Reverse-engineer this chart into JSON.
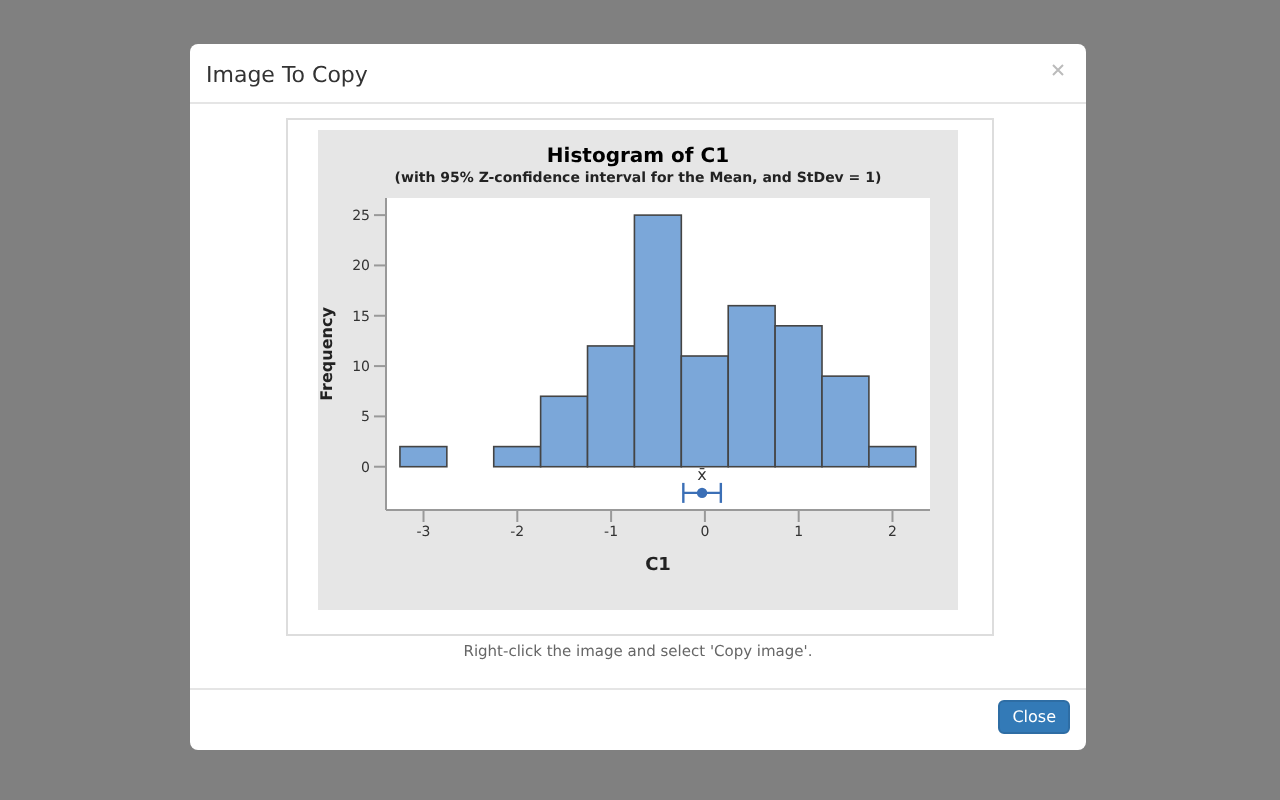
{
  "chart_data": {
    "type": "histogram",
    "title": "Histogram of C1",
    "subtitle": "(with 95% Z-confidence interval for the Mean, and StDev = 1)",
    "xlabel": "C1",
    "ylabel": "Frequency",
    "bins": [
      -3.25,
      -2.75,
      -2.25,
      -1.75,
      -1.25,
      -0.75,
      -0.25,
      0.25,
      0.75,
      1.25,
      1.75,
      2.25
    ],
    "values": [
      2,
      0,
      2,
      7,
      12,
      25,
      11,
      16,
      14,
      9,
      2
    ],
    "color": "#7ba7d9",
    "series": [
      {
        "type": "scatter",
        "name": "x̄",
        "x": [
          -0.03
        ],
        "values": [
          -2.6
        ],
        "xerrors": [
          0.2
        ],
        "color": "#3b6fb6"
      }
    ],
    "xlim": [
      -3.4,
      2.4
    ],
    "ylim": [
      -4.3,
      26.7
    ],
    "xticks": [
      -3,
      -2,
      -1,
      0,
      1,
      2
    ],
    "yticks": [
      0,
      5,
      10,
      15,
      20,
      25
    ],
    "grid": false,
    "annotations": [
      "Image To Copy",
      "Right-click the image and select 'Copy image'.",
      "Close"
    ]
  }
}
